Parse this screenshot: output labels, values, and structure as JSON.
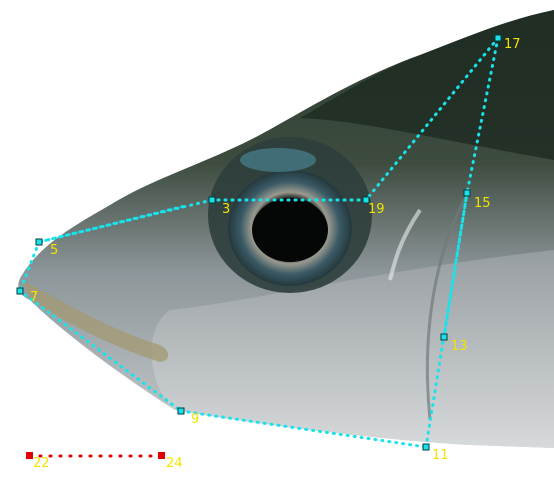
{
  "image": {
    "subject": "fish-head-morphometric-landmarks",
    "colors": {
      "landmark_line": "#19e3ea",
      "landmark_marker_fill": "#19e3ea",
      "landmark_marker_stroke": "#003a3a",
      "label": "#f2e400",
      "scale_line": "#e00000",
      "scale_marker": "#e00000",
      "background": "#ffffff"
    }
  },
  "landmarks": {
    "lm3": {
      "label": "3"
    },
    "lm5": {
      "label": "5"
    },
    "lm7": {
      "label": "7"
    },
    "lm9": {
      "label": "9"
    },
    "lm11": {
      "label": "11"
    },
    "lm13": {
      "label": "13"
    },
    "lm15": {
      "label": "15"
    },
    "lm17": {
      "label": "17"
    },
    "lm19": {
      "label": "19"
    }
  },
  "scale_bar": {
    "start_label": "22",
    "end_label": "24"
  }
}
